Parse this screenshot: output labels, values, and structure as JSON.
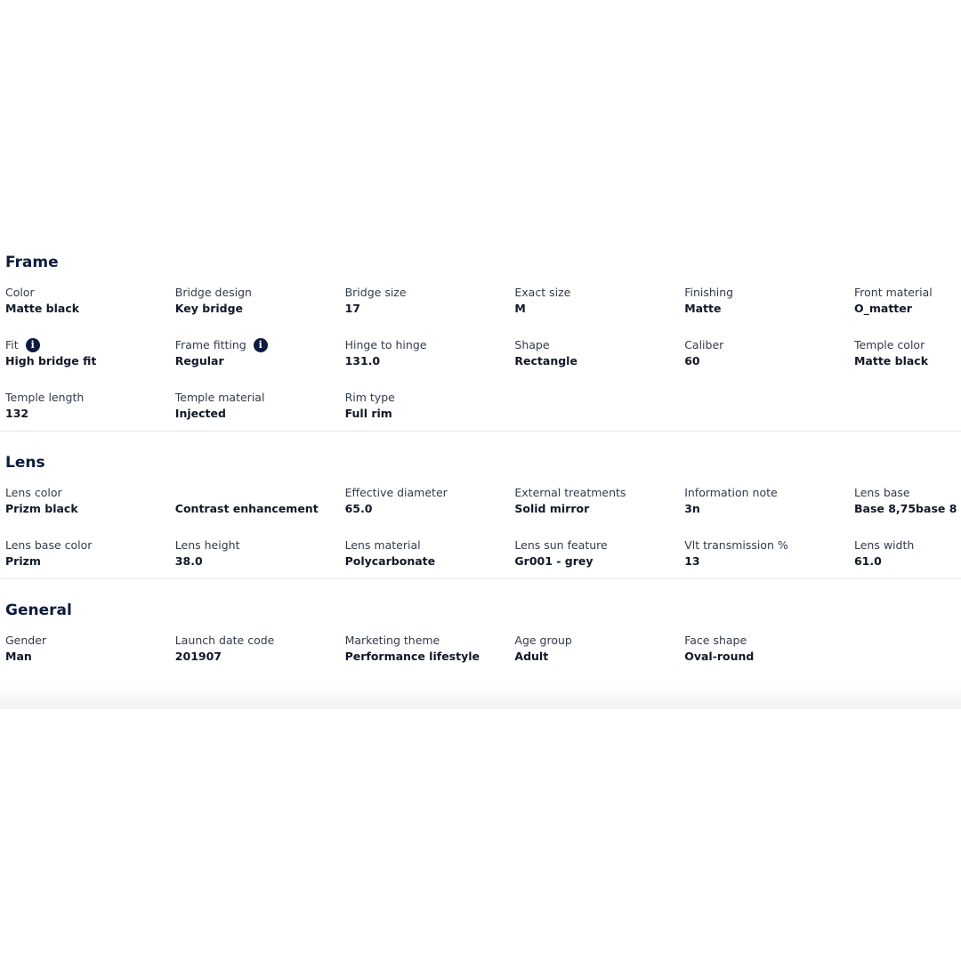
{
  "sections": [
    {
      "title": "Frame",
      "items": [
        {
          "label": "Color",
          "value": "Matte black"
        },
        {
          "label": "Bridge design",
          "value": "Key bridge"
        },
        {
          "label": "Bridge size",
          "value": "17"
        },
        {
          "label": "Exact size",
          "value": "M"
        },
        {
          "label": "Finishing",
          "value": "Matte"
        },
        {
          "label": "Front material",
          "value": "O_matter"
        },
        {
          "label": "Fit",
          "value": "High bridge fit",
          "info": true
        },
        {
          "label": "Frame fitting",
          "value": "Regular",
          "info": true
        },
        {
          "label": "Hinge to hinge",
          "value": "131.0"
        },
        {
          "label": "Shape",
          "value": "Rectangle"
        },
        {
          "label": "Caliber",
          "value": "60"
        },
        {
          "label": "Temple color",
          "value": "Matte black"
        },
        {
          "label": "Temple length",
          "value": "132"
        },
        {
          "label": "Temple material",
          "value": "Injected"
        },
        {
          "label": "Rim type",
          "value": "Full rim"
        }
      ]
    },
    {
      "title": "Lens",
      "items": [
        {
          "label": "Lens color",
          "value": "Prizm black"
        },
        {
          "label": "",
          "value": "Contrast enhancement"
        },
        {
          "label": "Effective diameter",
          "value": "65.0"
        },
        {
          "label": "External treatments",
          "value": "Solid mirror"
        },
        {
          "label": "Information note",
          "value": "3n"
        },
        {
          "label": "Lens base",
          "value": "Base 8,75base 8"
        },
        {
          "label": "Lens base color",
          "value": "Prizm"
        },
        {
          "label": "Lens height",
          "value": "38.0"
        },
        {
          "label": "Lens material",
          "value": "Polycarbonate"
        },
        {
          "label": "Lens sun feature",
          "value": "Gr001 - grey"
        },
        {
          "label": "Vlt transmission %",
          "value": "13"
        },
        {
          "label": "Lens width",
          "value": "61.0"
        }
      ]
    },
    {
      "title": "General",
      "items": [
        {
          "label": "Gender",
          "value": "Man"
        },
        {
          "label": "Launch date code",
          "value": "201907"
        },
        {
          "label": "Marketing theme",
          "value": "Performance lifestyle"
        },
        {
          "label": "Age group",
          "value": "Adult"
        },
        {
          "label": "Face shape",
          "value": "Oval-round"
        }
      ]
    }
  ],
  "info_icon": "info-circle-icon",
  "colors": {
    "heading": "#0d1b3e",
    "divider": "#e6e6e6"
  }
}
